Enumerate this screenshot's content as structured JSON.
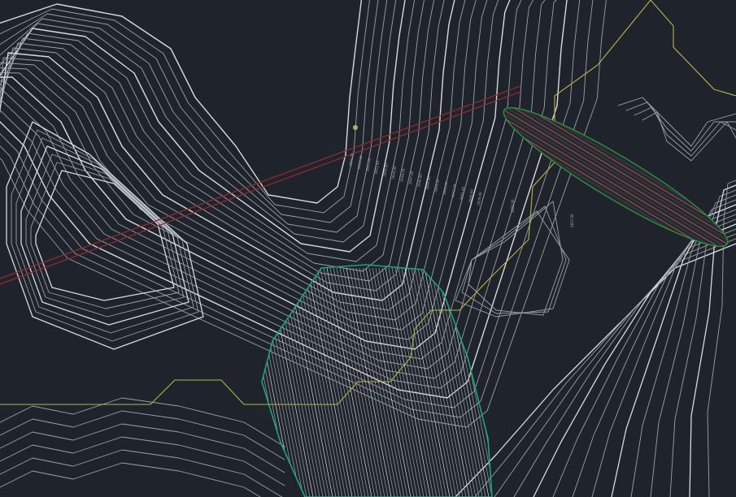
{
  "view": {
    "type": "CAD model space - topographic contour drawing",
    "background_color": "#1f242c"
  },
  "colors": {
    "contour_major": "#d6dadf",
    "contour_minor": "#9aa1aa",
    "boundary_yellow": "#b7b54a",
    "alignment_red": "#8e2a2e",
    "grading_outline_green": "#1fa37a",
    "ellipse_outline_green": "#2e8b3a",
    "ellipse_hatch_red": "#c0505a",
    "point_marker": "#9ab86a"
  },
  "layers": [
    {
      "name": "existing-contours",
      "icon": "contour-lines"
    },
    {
      "name": "property-boundary",
      "icon": "polyline-yellow"
    },
    {
      "name": "road-alignment",
      "icon": "double-line-red"
    },
    {
      "name": "grading-area",
      "icon": "closed-polyline-green"
    },
    {
      "name": "proposed-berm",
      "icon": "hatched-ellipse"
    }
  ],
  "contour_labels": [
    "2654.00",
    "2653.00",
    "2652.00",
    "2651.00",
    "2650.00",
    "2649.00",
    "2648.00",
    "2647.00",
    "2646.00",
    "2645.00",
    "2644.00",
    "2643.00",
    "2642.00",
    "2641.00",
    "2640.00",
    "2639.00"
  ],
  "side_labels": [
    "2658.00",
    "2657.00"
  ]
}
